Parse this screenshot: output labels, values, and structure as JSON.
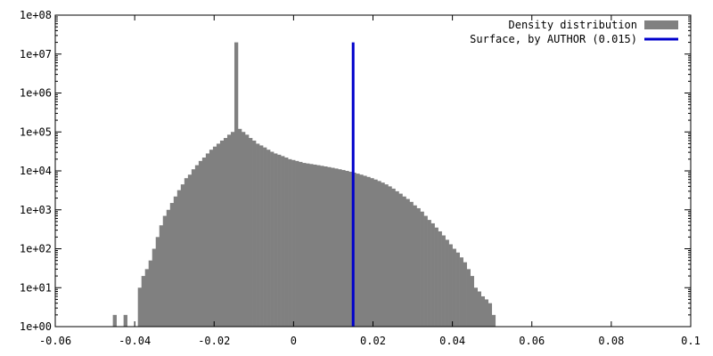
{
  "chart_data": {
    "type": "bar",
    "title": "",
    "xlabel": "",
    "ylabel": "",
    "xlim": [
      -0.06,
      0.1
    ],
    "ylim": [
      1,
      100000000
    ],
    "y_scale": "log",
    "grid": false,
    "legend_position": "top-right",
    "x_ticks": [
      "-0.06",
      "-0.04",
      "-0.02",
      "0",
      "0.02",
      "0.04",
      "0.06",
      "0.08",
      "0.1"
    ],
    "x_tick_values": [
      -0.06,
      -0.04,
      -0.02,
      0,
      0.02,
      0.04,
      0.06,
      0.08,
      0.1
    ],
    "y_ticks": [
      "1e+00",
      "1e+01",
      "1e+02",
      "1e+03",
      "1e+04",
      "1e+05",
      "1e+06",
      "1e+07",
      "1e+08"
    ],
    "y_tick_values": [
      1,
      10,
      100,
      1000,
      10000,
      100000,
      1000000,
      10000000,
      100000000
    ],
    "series": [
      {
        "name": "Density distribution",
        "kind": "histogram",
        "color": "#808080",
        "bin_width": 0.0009,
        "bin_start": -0.0455,
        "values": [
          2,
          1,
          0,
          2,
          1,
          0,
          1,
          10,
          20,
          30,
          50,
          100,
          200,
          400,
          700,
          1000,
          1500,
          2200,
          3200,
          4500,
          6500,
          8000,
          11000,
          14000,
          18000,
          22000,
          28000,
          35000,
          42000,
          50000,
          60000,
          70000,
          85000,
          100000,
          20000000,
          120000,
          100000,
          85000,
          70000,
          60000,
          50000,
          45000,
          40000,
          35000,
          31000,
          28000,
          26000,
          24000,
          22000,
          20000,
          19000,
          18000,
          17000,
          16000,
          15500,
          15000,
          14500,
          14000,
          13500,
          13000,
          12500,
          12000,
          11500,
          11000,
          10500,
          10000,
          9500,
          9000,
          8500,
          8000,
          7500,
          7000,
          6500,
          6000,
          5500,
          5000,
          4500,
          4000,
          3500,
          3000,
          2600,
          2200,
          1900,
          1600,
          1300,
          1100,
          900,
          700,
          550,
          450,
          350,
          280,
          220,
          170,
          130,
          100,
          80,
          60,
          45,
          30,
          20,
          10,
          8,
          6,
          5,
          4,
          2,
          0,
          1,
          0,
          1,
          0,
          0
        ],
        "spike_note": ""
      },
      {
        "name": "Surface, by AUTHOR (0.015)",
        "kind": "vertical-line",
        "color": "#0000cc",
        "x": 0.015,
        "y_top": 20000000
      }
    ]
  }
}
